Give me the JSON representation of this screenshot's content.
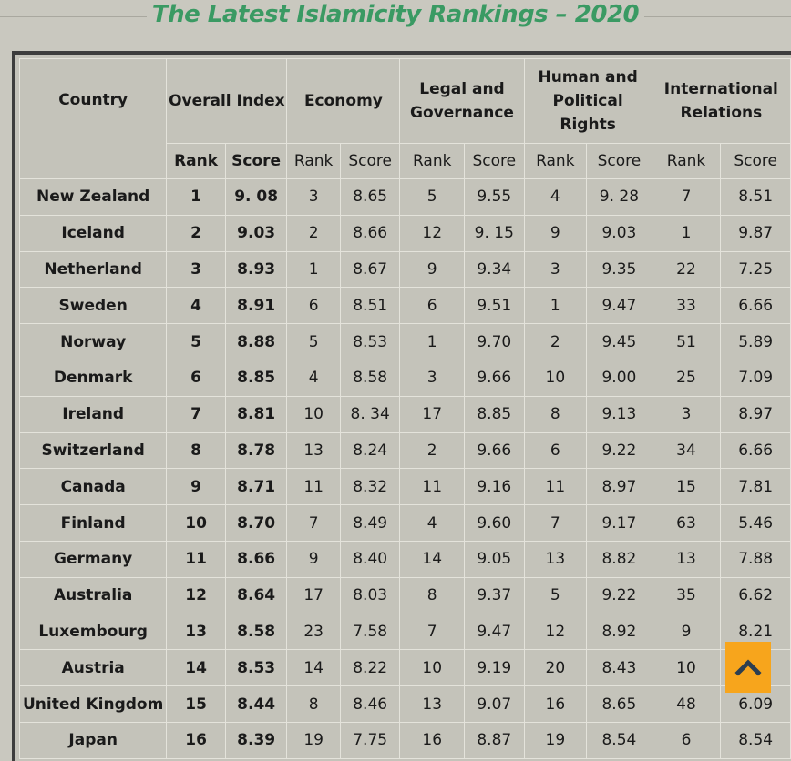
{
  "title": "The Latest Islamicity Rankings – 2020",
  "header": {
    "country": "Country",
    "overall": "Overall Index",
    "economy": "Economy",
    "legal": "Legal and Governance",
    "human": "Human and Political Rights",
    "international": "International Relations",
    "rank": "Rank",
    "score": "Score"
  },
  "rows": [
    {
      "country": "New Zealand",
      "rank": "1",
      "score": "9. 08",
      "eco_rank": "3",
      "eco_score": "8.65",
      "leg_rank": "5",
      "leg_score": "9.55",
      "hum_rank": "4",
      "hum_score": "9. 28",
      "int_rank": "7",
      "int_score": "8.51"
    },
    {
      "country": "Iceland",
      "rank": "2",
      "score": "9.03",
      "eco_rank": "2",
      "eco_score": "8.66",
      "leg_rank": "12",
      "leg_score": "9. 15",
      "hum_rank": "9",
      "hum_score": "9.03",
      "int_rank": "1",
      "int_score": "9.87"
    },
    {
      "country": "Netherland",
      "rank": "3",
      "score": "8.93",
      "eco_rank": "1",
      "eco_score": "8.67",
      "leg_rank": "9",
      "leg_score": "9.34",
      "hum_rank": "3",
      "hum_score": "9.35",
      "int_rank": "22",
      "int_score": "7.25"
    },
    {
      "country": "Sweden",
      "rank": "4",
      "score": "8.91",
      "eco_rank": "6",
      "eco_score": "8.51",
      "leg_rank": "6",
      "leg_score": "9.51",
      "hum_rank": "1",
      "hum_score": "9.47",
      "int_rank": "33",
      "int_score": "6.66"
    },
    {
      "country": "Norway",
      "rank": "5",
      "score": "8.88",
      "eco_rank": "5",
      "eco_score": "8.53",
      "leg_rank": "1",
      "leg_score": "9.70",
      "hum_rank": "2",
      "hum_score": "9.45",
      "int_rank": "51",
      "int_score": "5.89"
    },
    {
      "country": "Denmark",
      "rank": "6",
      "score": "8.85",
      "eco_rank": "4",
      "eco_score": "8.58",
      "leg_rank": "3",
      "leg_score": "9.66",
      "hum_rank": "10",
      "hum_score": "9.00",
      "int_rank": "25",
      "int_score": "7.09"
    },
    {
      "country": "Ireland",
      "rank": "7",
      "score": "8.81",
      "eco_rank": "10",
      "eco_score": "8. 34",
      "leg_rank": "17",
      "leg_score": "8.85",
      "hum_rank": "8",
      "hum_score": "9.13",
      "int_rank": "3",
      "int_score": "8.97"
    },
    {
      "country": "Switzerland",
      "rank": "8",
      "score": "8.78",
      "eco_rank": "13",
      "eco_score": "8.24",
      "leg_rank": "2",
      "leg_score": "9.66",
      "hum_rank": "6",
      "hum_score": "9.22",
      "int_rank": "34",
      "int_score": "6.66"
    },
    {
      "country": "Canada",
      "rank": "9",
      "score": "8.71",
      "eco_rank": "11",
      "eco_score": "8.32",
      "leg_rank": "11",
      "leg_score": "9.16",
      "hum_rank": "11",
      "hum_score": "8.97",
      "int_rank": "15",
      "int_score": "7.81"
    },
    {
      "country": "Finland",
      "rank": "10",
      "score": "8.70",
      "eco_rank": "7",
      "eco_score": "8.49",
      "leg_rank": "4",
      "leg_score": "9.60",
      "hum_rank": "7",
      "hum_score": "9.17",
      "int_rank": "63",
      "int_score": "5.46"
    },
    {
      "country": "Germany",
      "rank": "11",
      "score": "8.66",
      "eco_rank": "9",
      "eco_score": "8.40",
      "leg_rank": "14",
      "leg_score": "9.05",
      "hum_rank": "13",
      "hum_score": "8.82",
      "int_rank": "13",
      "int_score": "7.88"
    },
    {
      "country": "Australia",
      "rank": "12",
      "score": "8.64",
      "eco_rank": "17",
      "eco_score": "8.03",
      "leg_rank": "8",
      "leg_score": "9.37",
      "hum_rank": "5",
      "hum_score": "9.22",
      "int_rank": "35",
      "int_score": "6.62"
    },
    {
      "country": "Luxembourg",
      "rank": "13",
      "score": "8.58",
      "eco_rank": "23",
      "eco_score": "7.58",
      "leg_rank": "7",
      "leg_score": "9.47",
      "hum_rank": "12",
      "hum_score": "8.92",
      "int_rank": "9",
      "int_score": "8.21"
    },
    {
      "country": "Austria",
      "rank": "14",
      "score": "8.53",
      "eco_rank": "14",
      "eco_score": "8.22",
      "leg_rank": "10",
      "leg_score": "9.19",
      "hum_rank": "20",
      "hum_score": "8.43",
      "int_rank": "10",
      "int_score": ""
    },
    {
      "country": "United Kingdom",
      "rank": "15",
      "score": "8.44",
      "eco_rank": "8",
      "eco_score": "8.46",
      "leg_rank": "13",
      "leg_score": "9.07",
      "hum_rank": "16",
      "hum_score": "8.65",
      "int_rank": "48",
      "int_score": "6.09"
    },
    {
      "country": "Japan",
      "rank": "16",
      "score": "8.39",
      "eco_rank": "19",
      "eco_score": "7.75",
      "leg_rank": "16",
      "leg_score": "8.87",
      "hum_rank": "19",
      "hum_score": "8.54",
      "int_rank": "6",
      "int_score": "8.54"
    }
  ],
  "scroll_top_icon": "chevron-up-icon",
  "colors": {
    "title": "#3a9a63",
    "background": "#c9c8bf",
    "button": "#f7a51c",
    "button_icon": "#2c3e50"
  }
}
